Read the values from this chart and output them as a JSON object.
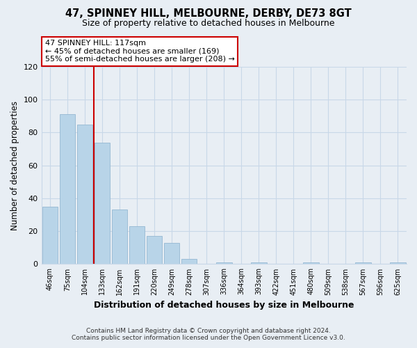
{
  "title": "47, SPINNEY HILL, MELBOURNE, DERBY, DE73 8GT",
  "subtitle": "Size of property relative to detached houses in Melbourne",
  "xlabel": "Distribution of detached houses by size in Melbourne",
  "ylabel": "Number of detached properties",
  "categories": [
    "46sqm",
    "75sqm",
    "104sqm",
    "133sqm",
    "162sqm",
    "191sqm",
    "220sqm",
    "249sqm",
    "278sqm",
    "307sqm",
    "336sqm",
    "364sqm",
    "393sqm",
    "422sqm",
    "451sqm",
    "480sqm",
    "509sqm",
    "538sqm",
    "567sqm",
    "596sqm",
    "625sqm"
  ],
  "values": [
    35,
    91,
    85,
    74,
    33,
    23,
    17,
    13,
    3,
    0,
    1,
    0,
    1,
    0,
    0,
    1,
    0,
    0,
    1,
    0,
    1
  ],
  "bar_color": "#b8d4e8",
  "bar_edge_color": "#8ab0cc",
  "vline_color": "#cc0000",
  "annotation_title": "47 SPINNEY HILL: 117sqm",
  "annotation_line1": "← 45% of detached houses are smaller (169)",
  "annotation_line2": "55% of semi-detached houses are larger (208) →",
  "annotation_box_edge_color": "#cc0000",
  "ylim": [
    0,
    120
  ],
  "yticks": [
    0,
    20,
    40,
    60,
    80,
    100,
    120
  ],
  "footer_line1": "Contains HM Land Registry data © Crown copyright and database right 2024.",
  "footer_line2": "Contains public sector information licensed under the Open Government Licence v3.0.",
  "bg_color": "#e8eef4",
  "plot_bg_color": "#e8eef4",
  "grid_color": "#c8d8e8"
}
